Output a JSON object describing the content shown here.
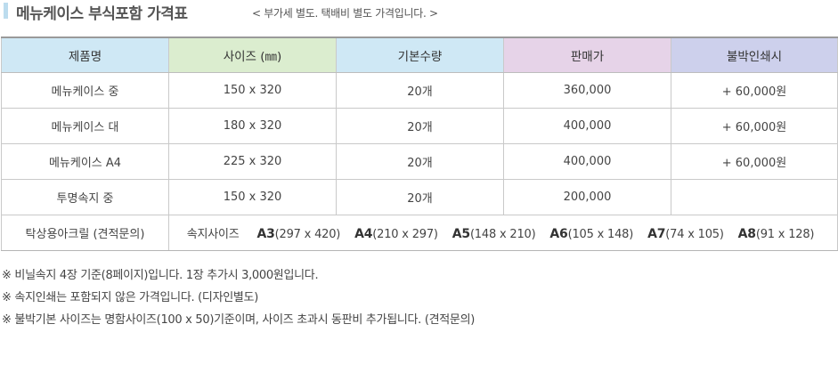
{
  "title": {
    "main": "메뉴케이스 부식포함 가격표",
    "sub": "< 부가세 별도. 택배비 별도 가격입니다. >"
  },
  "colors": {
    "title_accent": "#bcdcee",
    "header_col1": "#cfe8f5",
    "header_col2": "#dbedcf",
    "header_col3": "#cfe8f5",
    "header_col4": "#e6d3e8",
    "header_col5": "#cdd0ec"
  },
  "table": {
    "headers": [
      "제품명",
      "사이즈 (㎜)",
      "기본수량",
      "판매가",
      "불박인쇄시"
    ],
    "rows": [
      [
        "메뉴케이스 중",
        "150 x 320",
        "20개",
        "360,000",
        "+ 60,000원"
      ],
      [
        "메뉴케이스 대",
        "180 x 320",
        "20개",
        "400,000",
        "+ 60,000원"
      ],
      [
        "메뉴케이스 A4",
        "225 x 320",
        "20개",
        "400,000",
        "+ 60,000원"
      ],
      [
        "투명속지 중",
        "150 x 320",
        "20개",
        "200,000",
        ""
      ]
    ],
    "last_row": {
      "label": "탁상용아크릴  (견적문의)",
      "sizes_label": "속지사이즈",
      "sizes": [
        {
          "name": "A3",
          "dims": "(297 x 420)"
        },
        {
          "name": "A4",
          "dims": "(210 x 297)"
        },
        {
          "name": "A5",
          "dims": "(148 x 210)"
        },
        {
          "name": "A6",
          "dims": "(105 x 148)"
        },
        {
          "name": "A7",
          "dims": "(74 x 105)"
        },
        {
          "name": "A8",
          "dims": "(91 x 128)"
        }
      ]
    }
  },
  "notes": [
    "※ 비닐속지 4장 기준(8페이지)입니다. 1장 추가시 3,000원입니다.",
    "※ 속지인쇄는 포함되지 않은 가격입니다. (디자인별도)",
    "※ 불박기본 사이즈는 명함사이즈(100 x 50)기준이며, 사이즈 초과시 동판비 추가됩니다. (견적문의)"
  ]
}
